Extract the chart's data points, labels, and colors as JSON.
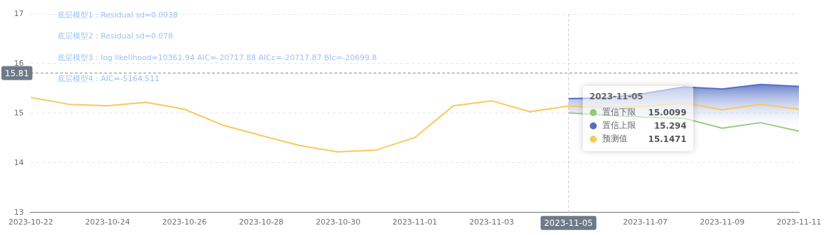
{
  "chart_data": {
    "type": "line",
    "annotations": [
      "底层模型1：Residual sd=0.0038",
      "底层模型2：Residual sd=0.078",
      "底层模型3：log likelihood=10361.94 AIC=-20717.88 AICc=-20717.87 BIc=-20699.8",
      "底层模型4：AIC=-5164.511",
      "15.0099",
      "15.294",
      "15.1471"
    ],
    "x": [
      "2023-10-22",
      "2023-10-23",
      "2023-10-24",
      "2023-10-25",
      "2023-10-26",
      "2023-10-27",
      "2023-10-28",
      "2023-10-29",
      "2023-10-30",
      "2023-10-31",
      "2023-11-01",
      "2023-11-02",
      "2023-11-03",
      "2023-11-04",
      "2023-11-05",
      "2023-11-06",
      "2023-11-07",
      "2023-11-08",
      "2023-11-09",
      "2023-11-10",
      "2023-11-11"
    ],
    "series": [
      {
        "name": "置信下限",
        "color": "#91cc75",
        "values": [
          null,
          null,
          null,
          null,
          null,
          null,
          null,
          null,
          null,
          null,
          null,
          null,
          null,
          null,
          15.0099,
          14.96,
          14.92,
          14.9,
          14.7,
          14.81,
          14.64
        ]
      },
      {
        "name": "置信上限",
        "color": "#5470c6",
        "type": "area",
        "values": [
          null,
          null,
          null,
          null,
          null,
          null,
          null,
          null,
          null,
          null,
          null,
          null,
          null,
          null,
          15.294,
          15.31,
          15.4,
          15.53,
          15.49,
          15.58,
          15.54
        ]
      },
      {
        "name": "预测值",
        "color": "#fac858",
        "values": [
          15.32,
          15.18,
          15.15,
          15.22,
          15.08,
          14.76,
          14.55,
          14.35,
          14.22,
          14.26,
          14.51,
          15.15,
          15.25,
          15.03,
          15.1471,
          15.11,
          15.14,
          15.21,
          15.07,
          15.18,
          15.08
        ]
      }
    ],
    "xlim": [
      "2023-10-22",
      "2023-11-11"
    ],
    "xticks": [
      "2023-10-22",
      "2023-10-24",
      "2023-10-26",
      "2023-10-28",
      "2023-10-30",
      "2023-11-01",
      "2023-11-03",
      "2023-11-05",
      "2023-11-07",
      "2023-11-09",
      "2023-11-11"
    ],
    "ylim": [
      13,
      17
    ],
    "yticks": [
      13,
      14,
      15,
      16,
      17
    ],
    "grid": "y",
    "legend": "right",
    "marker": "none",
    "ref_lines": [
      {
        "axis": "y",
        "value": 15.81,
        "label": "15.81",
        "color": "#888888",
        "line_style": "dashed"
      },
      {
        "axis": "x",
        "value": "2023-11-05",
        "label": "2023-11-05",
        "color": "#c8c8d8",
        "line_style": "dashed"
      }
    ]
  }
}
